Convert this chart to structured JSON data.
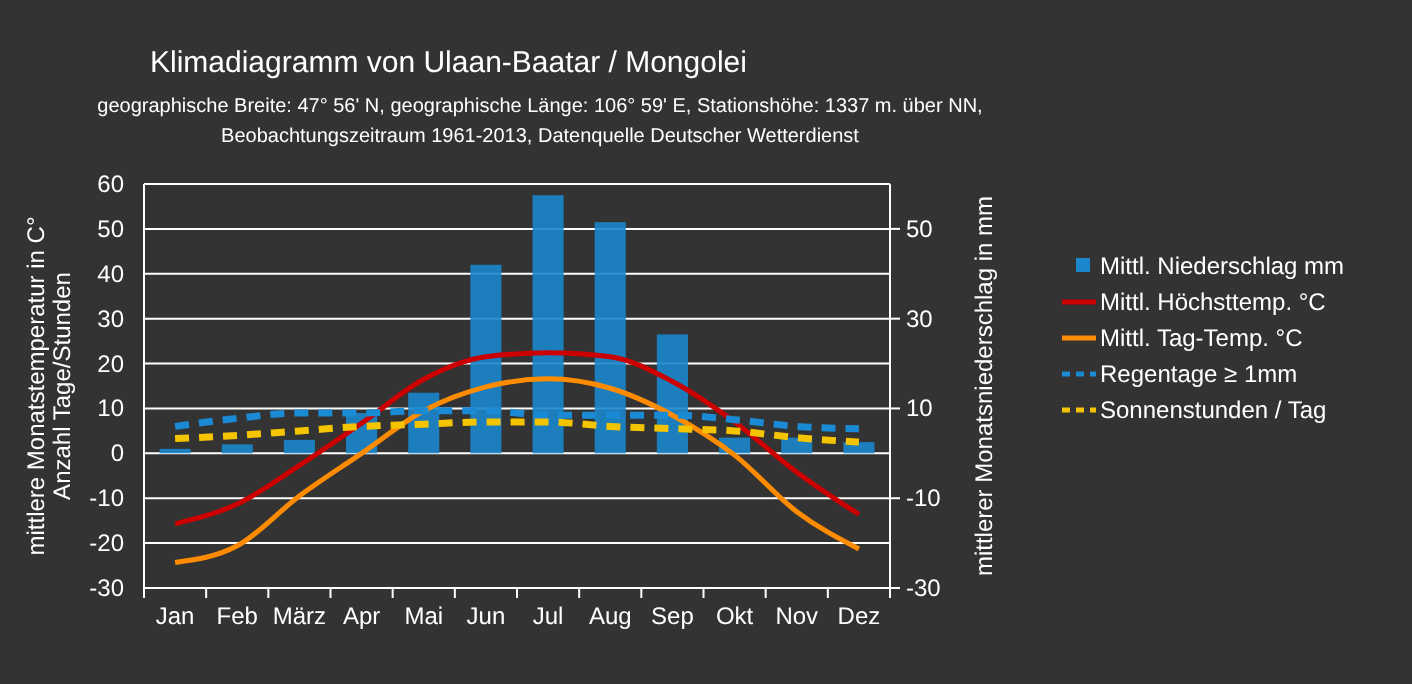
{
  "chart_data": {
    "type": "bar",
    "title": "Klimadiagramm von Ulaan-Baatar / Mongolei",
    "subtitle": "geographische Breite: 47° 56' N, geographische Länge: 106° 59' E, Stationshöhe: 1337 m. über NN,\nBeobachtungszeitraum 1961-2013, Datenquelle Deutscher Wetterdienst",
    "ylabel": "mittlere Monatstemperatur in C°\nAnzahl Tage/Stunden",
    "y2label": "mittlerer Monatsniederschlag in mm",
    "categories": [
      "Jan",
      "Feb",
      "März",
      "Apr",
      "Mai",
      "Jun",
      "Jul",
      "Aug",
      "Sep",
      "Okt",
      "Nov",
      "Dez"
    ],
    "series": [
      {
        "name": "Mittl. Niederschlag mm",
        "color": "#1a86cc",
        "values": [
          1,
          2,
          3,
          9,
          13.5,
          42,
          57.5,
          51.5,
          26.5,
          3.5,
          3.5,
          2.5
        ]
      },
      {
        "name": "Mittl. Höchsttemp. °C",
        "type": "line",
        "color": "#cc0000",
        "values": [
          -15.7,
          -11.3,
          -2.7,
          6.7,
          16.5,
          21.5,
          22.4,
          21.5,
          16,
          7,
          -4.2,
          -13.6
        ]
      },
      {
        "name": "Mittl. Tag-Temp. °C",
        "type": "line",
        "color": "#ff8c00",
        "values": [
          -24.3,
          -20.6,
          -9.5,
          0,
          9.5,
          14.8,
          16.6,
          14.5,
          8.5,
          -0.4,
          -13,
          -21.3
        ]
      },
      {
        "name": "Regentage ≥ 1mm",
        "type": "line",
        "line_style": "dashed",
        "color": "#1a8ad4",
        "values": [
          6,
          7.8,
          9,
          9,
          9.5,
          9.5,
          8.5,
          8.5,
          8.5,
          7.5,
          6,
          5.5
        ]
      },
      {
        "name": "Sonnenstunden / Tag",
        "type": "line",
        "line_style": "dashed",
        "color": "#f5c400",
        "values": [
          3.3,
          4,
          5,
          6,
          6.5,
          7,
          7,
          6,
          5.5,
          5,
          3.5,
          2.5
        ]
      }
    ],
    "ylim": [
      -30,
      60
    ],
    "yticks": [
      -30,
      -20,
      -10,
      0,
      10,
      20,
      30,
      40,
      50,
      60
    ],
    "y2lim": [
      -30,
      60
    ],
    "y2ticks": [
      -30,
      -10,
      10,
      30,
      50
    ],
    "grid": "y",
    "legend": "right"
  }
}
